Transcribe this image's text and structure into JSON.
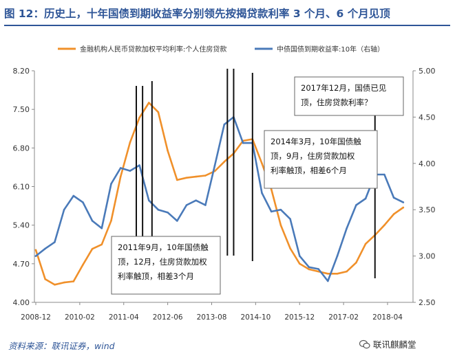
{
  "title": "图 12：历史上，十年国债到期收益率分别领先按揭贷款利率 3 个月、6 个月见顶",
  "source": "资料来源：联讯证券，wind",
  "watermark": "联讯麒麟堂",
  "chart_data": {
    "type": "line",
    "legend": [
      {
        "name": "金融机构人民币贷款加权平均利率:个人住房贷款",
        "color": "#f0902a"
      },
      {
        "name": "中债国债到期收益率:10年（右轴）",
        "color": "#4a7ab9"
      }
    ],
    "x_ticks": [
      "2008-12",
      "2010-02",
      "2011-04",
      "2012-06",
      "2013-08",
      "2014-10",
      "2015-12",
      "2017-02",
      "2018-04"
    ],
    "y_left": {
      "min": 4.0,
      "max": 8.2,
      "ticks": [
        "8.20",
        "7.50",
        "6.80",
        "6.10",
        "5.40",
        "4.70",
        "4.00"
      ]
    },
    "y_right": {
      "min": 2.5,
      "max": 5.0,
      "ticks": [
        "5.00",
        "4.50",
        "4.00",
        "3.50",
        "3.00",
        "2.50"
      ]
    },
    "series": [
      {
        "name": "金融机构人民币贷款加权平均利率:个人住房贷款",
        "axis": "left",
        "color": "#f0902a",
        "points": [
          [
            "2008-12",
            4.95
          ],
          [
            "2009-03",
            4.42
          ],
          [
            "2009-06",
            4.32
          ],
          [
            "2009-09",
            4.36
          ],
          [
            "2009-12",
            4.38
          ],
          [
            "2010-03",
            4.68
          ],
          [
            "2010-06",
            4.97
          ],
          [
            "2010-09",
            5.05
          ],
          [
            "2010-12",
            5.48
          ],
          [
            "2011-03",
            6.28
          ],
          [
            "2011-06",
            6.9
          ],
          [
            "2011-09",
            7.35
          ],
          [
            "2011-12",
            7.62
          ],
          [
            "2012-03",
            7.45
          ],
          [
            "2012-06",
            6.75
          ],
          [
            "2012-09",
            6.22
          ],
          [
            "2012-12",
            6.26
          ],
          [
            "2013-03",
            6.28
          ],
          [
            "2013-06",
            6.3
          ],
          [
            "2013-09",
            6.38
          ],
          [
            "2013-12",
            6.55
          ],
          [
            "2014-03",
            6.7
          ],
          [
            "2014-06",
            6.93
          ],
          [
            "2014-09",
            6.96
          ],
          [
            "2014-12",
            6.52
          ],
          [
            "2015-03",
            6.05
          ],
          [
            "2015-06",
            5.4
          ],
          [
            "2015-09",
            4.98
          ],
          [
            "2015-12",
            4.7
          ],
          [
            "2016-03",
            4.6
          ],
          [
            "2016-06",
            4.56
          ],
          [
            "2016-09",
            4.52
          ],
          [
            "2016-12",
            4.52
          ],
          [
            "2017-03",
            4.56
          ],
          [
            "2017-06",
            4.72
          ],
          [
            "2017-09",
            5.06
          ],
          [
            "2017-12",
            5.22
          ],
          [
            "2018-03",
            5.4
          ],
          [
            "2018-06",
            5.6
          ],
          [
            "2018-09",
            5.72
          ]
        ]
      },
      {
        "name": "中债国债到期收益率:10年（右轴）",
        "axis": "right",
        "color": "#4a7ab9",
        "points": [
          [
            "2008-12",
            3.0
          ],
          [
            "2009-03",
            3.08
          ],
          [
            "2009-06",
            3.15
          ],
          [
            "2009-09",
            3.5
          ],
          [
            "2009-12",
            3.65
          ],
          [
            "2010-03",
            3.58
          ],
          [
            "2010-06",
            3.38
          ],
          [
            "2010-09",
            3.3
          ],
          [
            "2010-12",
            3.78
          ],
          [
            "2011-03",
            3.95
          ],
          [
            "2011-06",
            3.92
          ],
          [
            "2011-09",
            3.98
          ],
          [
            "2011-12",
            3.6
          ],
          [
            "2012-03",
            3.5
          ],
          [
            "2012-06",
            3.47
          ],
          [
            "2012-09",
            3.38
          ],
          [
            "2012-12",
            3.55
          ],
          [
            "2013-03",
            3.6
          ],
          [
            "2013-06",
            3.55
          ],
          [
            "2013-09",
            3.98
          ],
          [
            "2013-12",
            4.42
          ],
          [
            "2014-03",
            4.5
          ],
          [
            "2014-06",
            4.22
          ],
          [
            "2014-09",
            4.22
          ],
          [
            "2014-12",
            3.68
          ],
          [
            "2015-03",
            3.48
          ],
          [
            "2015-06",
            3.5
          ],
          [
            "2015-09",
            3.4
          ],
          [
            "2015-12",
            3.0
          ],
          [
            "2016-03",
            2.88
          ],
          [
            "2016-06",
            2.86
          ],
          [
            "2016-09",
            2.73
          ],
          [
            "2016-12",
            3.0
          ],
          [
            "2017-03",
            3.3
          ],
          [
            "2017-06",
            3.55
          ],
          [
            "2017-09",
            3.62
          ],
          [
            "2017-12",
            3.88
          ],
          [
            "2018-03",
            3.88
          ],
          [
            "2018-06",
            3.63
          ],
          [
            "2018-09",
            3.58
          ]
        ]
      }
    ],
    "markers": [
      "2011-08",
      "2011-10",
      "2012-01",
      "2014-01",
      "2014-03",
      "2014-09",
      "2017-12"
    ],
    "annotations": [
      {
        "lines": [
          "2011年9月，10年国债触",
          "顶，12月，住房贷款加权",
          "利率触顶，相差3个月"
        ]
      },
      {
        "lines": [
          "2014年3月，10年国债触",
          "顶，9月，住房贷款加权",
          "利率触顶，相差6个月"
        ]
      },
      {
        "lines": [
          "2017年12月，国债已见",
          "顶，住房贷款利率？"
        ]
      }
    ]
  }
}
